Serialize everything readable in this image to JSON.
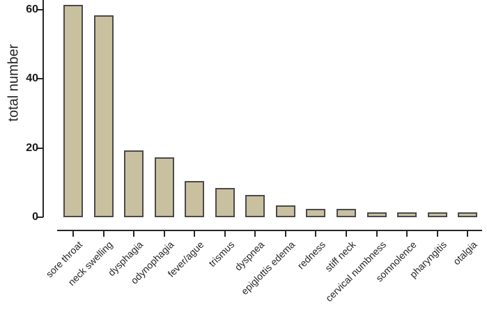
{
  "chart_data": {
    "type": "bar",
    "categories": [
      "sore throat",
      "neck swelling",
      "dysphagia",
      "odynophagia",
      "fever/ague",
      "trismus",
      "dyspnea",
      "epiglottis edema",
      "redness",
      "stiff neck",
      "cervical numbness",
      "somnolence",
      "pharyngitis",
      "otalgia"
    ],
    "values": [
      61,
      58,
      19,
      17,
      10,
      8,
      6,
      3,
      2,
      2,
      1,
      1,
      1,
      1
    ],
    "title": "",
    "xlabel": "",
    "ylabel": "total number",
    "ylim": [
      0,
      62
    ],
    "yticks": [
      0,
      20,
      40,
      60
    ],
    "grid": false,
    "legend_position": "none",
    "bar_color": "#c9c0a0",
    "bar_border_color": "#4a4a4a",
    "axis_color": "#262626",
    "text_color": "#262626",
    "background_color": "#ffffff"
  }
}
